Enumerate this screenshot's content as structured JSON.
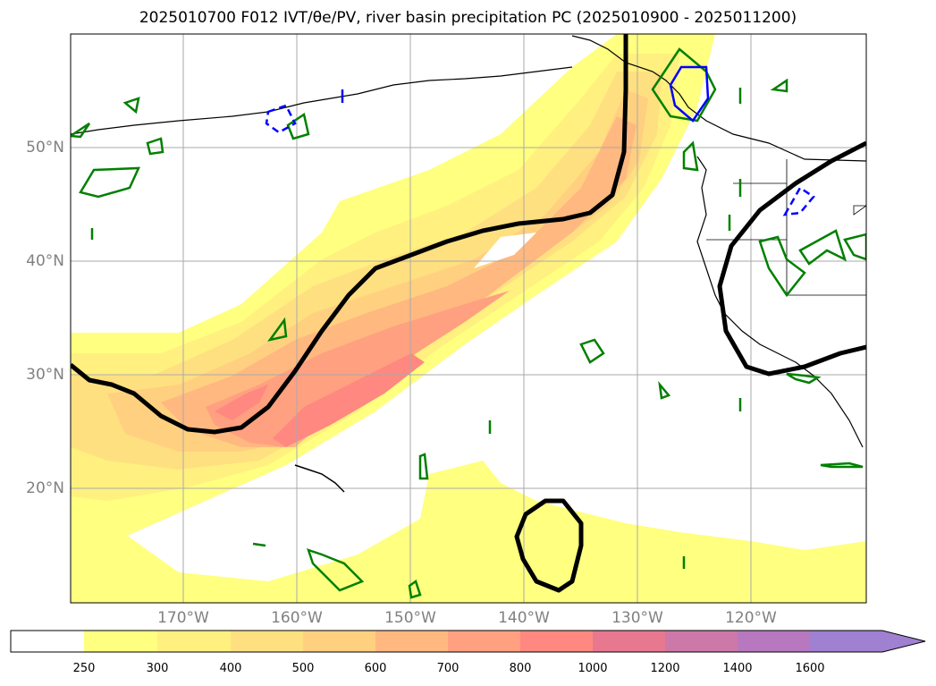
{
  "title": "2025010700 F012 IVT/θe/PV, river basin precipitation PC (2025010900 - 2025011200)",
  "map": {
    "lat_labels": [
      "50°N",
      "40°N",
      "30°N",
      "20°N"
    ],
    "lon_labels": [
      "170°W",
      "160°W",
      "150°W",
      "140°W",
      "130°W",
      "120°W"
    ],
    "grid": true
  },
  "colorbar": {
    "ticks": [
      "250",
      "300",
      "400",
      "500",
      "600",
      "700",
      "800",
      "1000",
      "1200",
      "1400",
      "1600"
    ],
    "colors": [
      "#ffffff",
      "#ffff80",
      "#fff080",
      "#ffe080",
      "#ffd080",
      "#ffb880",
      "#ffa080",
      "#ff8880",
      "#e87890",
      "#cc78a8",
      "#b878c0",
      "#a080d0"
    ],
    "extend": "max"
  },
  "colors": {
    "theta_e_contour": "#000000",
    "pv_positive": "#008000",
    "pv_negative": "#0000ff",
    "coastline": "#000000",
    "gridline": "#aaaaaa"
  }
}
